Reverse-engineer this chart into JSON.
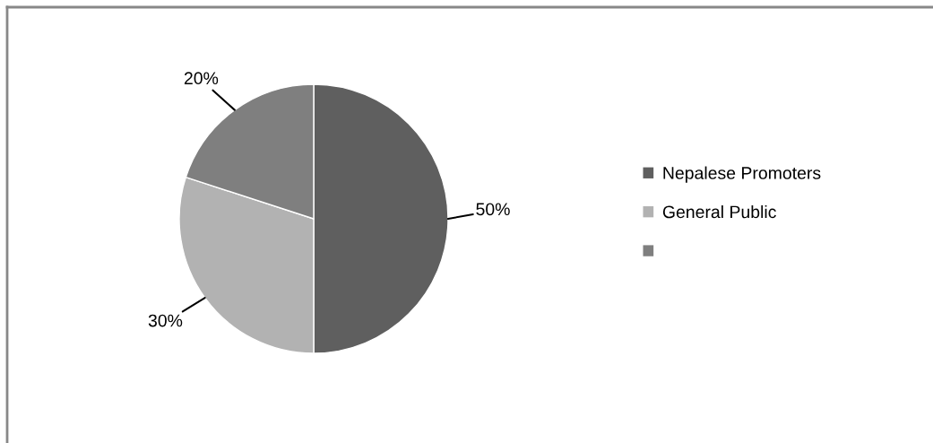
{
  "chart_data": {
    "type": "pie",
    "categories": [
      "Nepalese Promoters",
      "General Public",
      null
    ],
    "values": [
      50,
      30,
      20
    ],
    "colors": [
      "#5f5f5f",
      "#b2b2b2",
      "#7f7f7f"
    ],
    "value_labels": [
      "50%",
      "30%",
      "20%"
    ],
    "legend": "right"
  }
}
